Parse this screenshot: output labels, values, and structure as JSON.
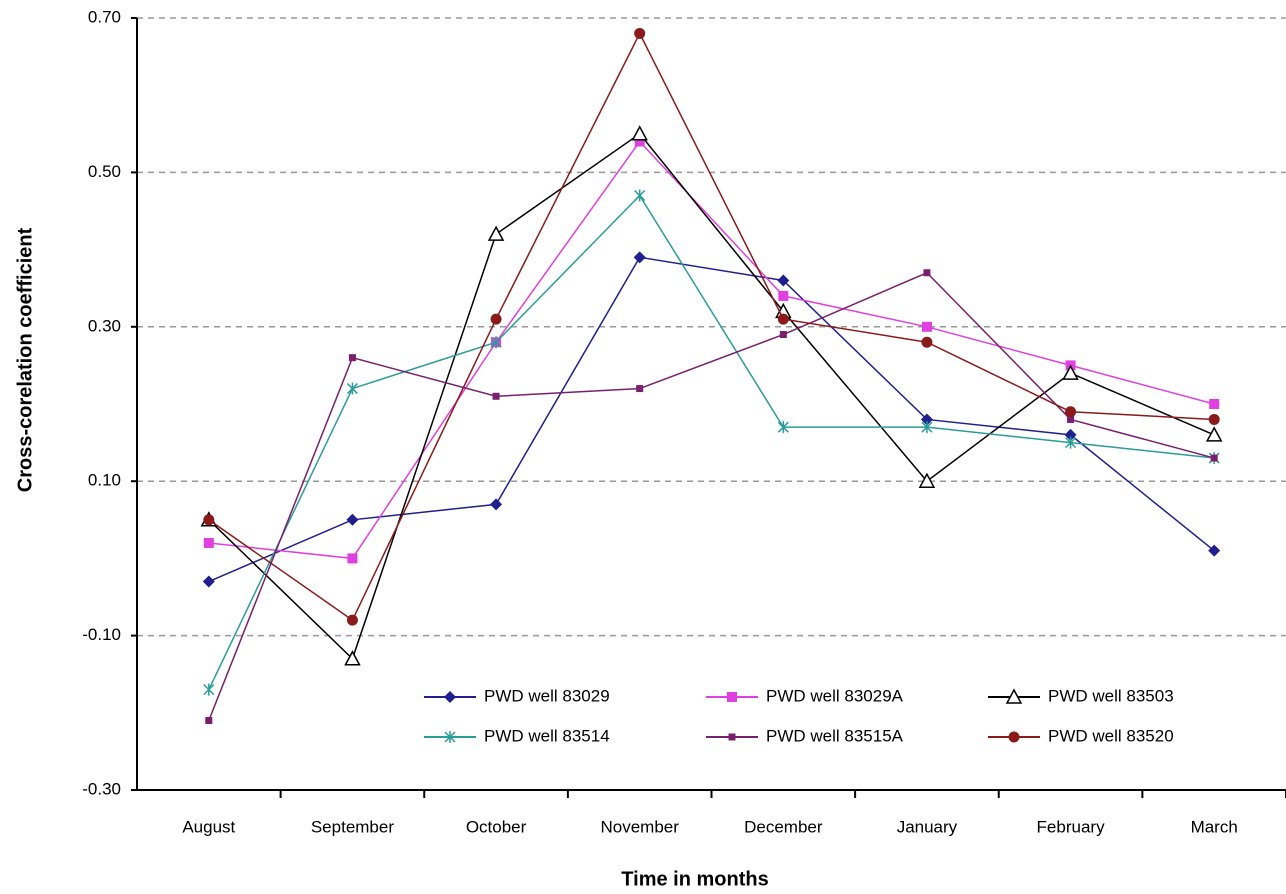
{
  "chart_data": {
    "type": "line",
    "x_label": "Time in months",
    "y_label": "Cross-corelation coefficient",
    "categories": [
      "August",
      "September",
      "October",
      "November",
      "December",
      "January",
      "February",
      "March"
    ],
    "ylim": [
      -0.3,
      0.7
    ],
    "yticks": [
      {
        "value": -0.3,
        "label": "-0.30"
      },
      {
        "value": -0.1,
        "label": "-0.10"
      },
      {
        "value": 0.1,
        "label": "0.10"
      },
      {
        "value": 0.3,
        "label": "0.30"
      },
      {
        "value": 0.5,
        "label": "0.50"
      },
      {
        "value": 0.7,
        "label": "0.70"
      }
    ],
    "grid": true,
    "legend": "lower right",
    "series": [
      {
        "name": "PWD well 83029",
        "color": "#1f1f8f",
        "marker": "diamond",
        "values": [
          -0.03,
          0.05,
          0.07,
          0.39,
          0.36,
          0.18,
          0.16,
          0.01
        ]
      },
      {
        "name": "PWD well 83029A",
        "color": "#e040e0",
        "marker": "square",
        "values": [
          0.02,
          0.0,
          0.28,
          0.54,
          0.34,
          0.3,
          0.25,
          0.2
        ]
      },
      {
        "name": "PWD well 83503",
        "color": "#000000",
        "marker": "triangle",
        "values": [
          0.05,
          -0.13,
          0.42,
          0.55,
          0.32,
          0.1,
          0.24,
          0.16
        ]
      },
      {
        "name": "PWD well 83514",
        "color": "#2a9d9a",
        "marker": "star",
        "values": [
          -0.17,
          0.22,
          0.28,
          0.47,
          0.17,
          0.17,
          0.15,
          0.13
        ]
      },
      {
        "name": "PWD well 83515A",
        "color": "#7a1f6e",
        "marker": "smallsquare",
        "values": [
          -0.21,
          0.26,
          0.21,
          0.22,
          0.29,
          0.37,
          0.18,
          0.13
        ]
      },
      {
        "name": "PWD well 83520",
        "color": "#8b1a1a",
        "marker": "circle",
        "values": [
          0.05,
          -0.08,
          0.31,
          0.68,
          0.31,
          0.28,
          0.19,
          0.18
        ]
      }
    ]
  }
}
